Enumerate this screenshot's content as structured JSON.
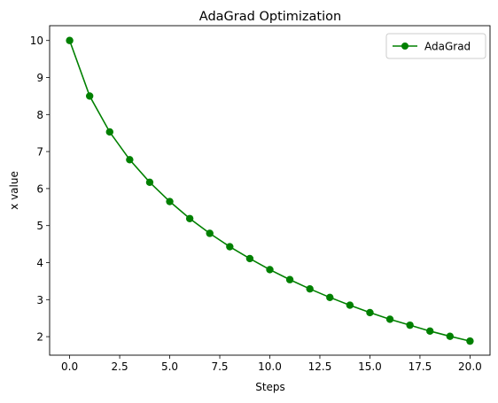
{
  "chart_data": {
    "type": "line",
    "title": "AdaGrad Optimization",
    "xlabel": "Steps",
    "ylabel": "x value",
    "xlim": [
      -1,
      21
    ],
    "ylim": [
      1.5,
      10.4
    ],
    "xticks": [
      0.0,
      2.5,
      5.0,
      7.5,
      10.0,
      12.5,
      15.0,
      17.5,
      20.0
    ],
    "xtick_labels": [
      "0.0",
      "2.5",
      "5.0",
      "7.5",
      "10.0",
      "12.5",
      "15.0",
      "17.5",
      "20.0"
    ],
    "yticks": [
      2,
      3,
      4,
      5,
      6,
      7,
      8,
      9,
      10
    ],
    "ytick_labels": [
      "2",
      "3",
      "4",
      "5",
      "6",
      "7",
      "8",
      "9",
      "10"
    ],
    "grid": false,
    "legend_position": "top-right",
    "series": [
      {
        "name": "AdaGrad",
        "color": "#008000",
        "marker": "circle",
        "x": [
          0,
          1,
          2,
          3,
          4,
          5,
          6,
          7,
          8,
          9,
          10,
          11,
          12,
          13,
          14,
          15,
          16,
          17,
          18,
          19,
          20
        ],
        "y": [
          10.0,
          8.5,
          7.53,
          6.78,
          6.17,
          5.65,
          5.19,
          4.79,
          4.43,
          4.11,
          3.81,
          3.54,
          3.29,
          3.06,
          2.85,
          2.65,
          2.47,
          2.31,
          2.15,
          2.01,
          1.88
        ]
      }
    ]
  }
}
